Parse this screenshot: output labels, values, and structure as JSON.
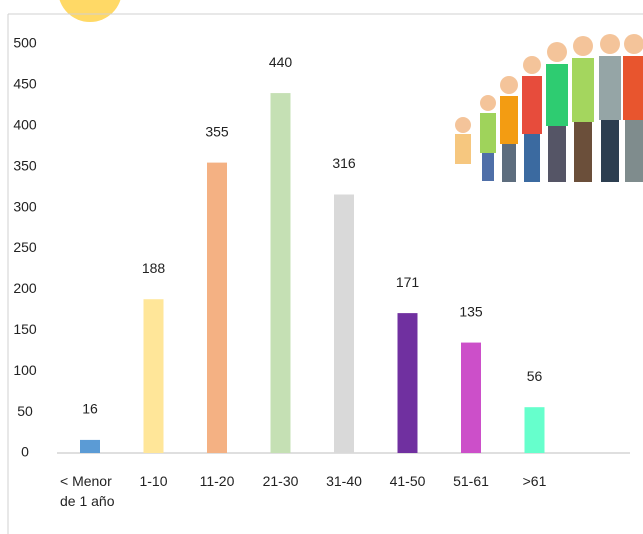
{
  "chart_data": {
    "type": "bar",
    "categories": [
      "< Menor de 1 año",
      "1-10",
      "11-20",
      "21-30",
      "31-40",
      "41-50",
      "51-61",
      ">61"
    ],
    "values": [
      16,
      188,
      355,
      440,
      316,
      171,
      135,
      56
    ],
    "colors": [
      "#5b9bd5",
      "#ffe699",
      "#f4b183",
      "#c5e0b4",
      "#d9d9d9",
      "#7030a0",
      "#cc4fc9",
      "#66ffcc"
    ],
    "ylim": [
      0,
      500
    ],
    "yticks": [
      0,
      50,
      100,
      150,
      200,
      250,
      300,
      350,
      400,
      450,
      500
    ],
    "grid": false
  }
}
